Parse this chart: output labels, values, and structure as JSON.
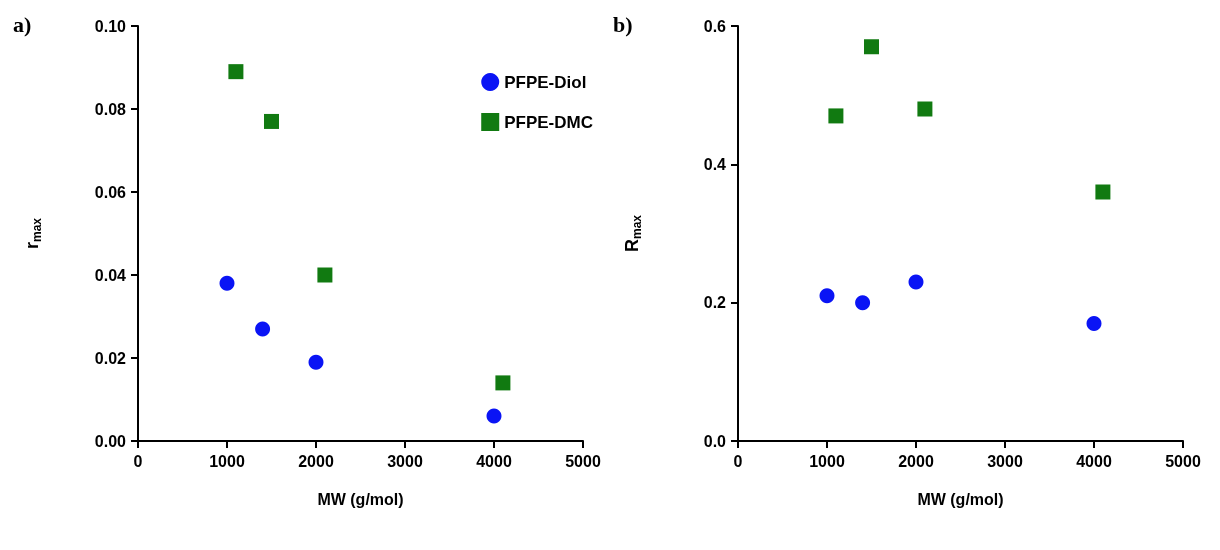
{
  "chart_data": [
    {
      "type": "scatter",
      "title": "a)",
      "xlabel": "MW (g/mol)",
      "ylabel": "r$_{max}$",
      "xlim": [
        0,
        5000
      ],
      "xticks": [
        0,
        1000,
        2000,
        3000,
        4000,
        5000
      ],
      "ylim": [
        0,
        0.1
      ],
      "yticks": [
        {
          "value": 0,
          "label": "0.00"
        },
        {
          "value": 0.02,
          "label": "0.02"
        },
        {
          "value": 0.04,
          "label": "0.04"
        },
        {
          "value": 0.06,
          "label": "0.06"
        },
        {
          "value": 0.08,
          "label": "0.08"
        },
        {
          "value": 0.1,
          "label": "0.10"
        }
      ],
      "grid": false,
      "legend": "top right",
      "series": [
        {
          "name": "PFPE-Diol",
          "color": "#0a14f5",
          "marker": "circle",
          "x": [
            1000,
            1400,
            2000,
            4000
          ],
          "values": [
            0.038,
            0.027,
            0.019,
            0.006
          ]
        },
        {
          "name": "PFPE-DMC",
          "color": "#117a11",
          "marker": "square",
          "x": [
            1100,
            1500,
            2100,
            4100
          ],
          "values": [
            0.089,
            0.077,
            0.04,
            0.014
          ]
        }
      ]
    },
    {
      "type": "scatter",
      "title": "b)",
      "xlabel": "MW (g/mol)",
      "ylabel": "R$_{max}$",
      "xlim": [
        0,
        5000
      ],
      "xticks": [
        0,
        1000,
        2000,
        3000,
        4000,
        5000
      ],
      "ylim": [
        0,
        0.6
      ],
      "yticks": [
        {
          "value": 0,
          "label": "0.0"
        },
        {
          "value": 0.2,
          "label": "0.2"
        },
        {
          "value": 0.4,
          "label": "0.4"
        },
        {
          "value": 0.6,
          "label": "0.6"
        }
      ],
      "grid": false,
      "legend": false,
      "series": [
        {
          "color": "#0a14f5",
          "marker": "circle",
          "x": [
            1000,
            1400,
            2000,
            4000
          ],
          "values": [
            0.21,
            0.2,
            0.23,
            0.17
          ]
        },
        {
          "color": "#117a11",
          "marker": "square",
          "x": [
            1100,
            1500,
            2100,
            4100
          ],
          "values": [
            0.47,
            0.57,
            0.48,
            0.36
          ]
        }
      ]
    }
  ]
}
